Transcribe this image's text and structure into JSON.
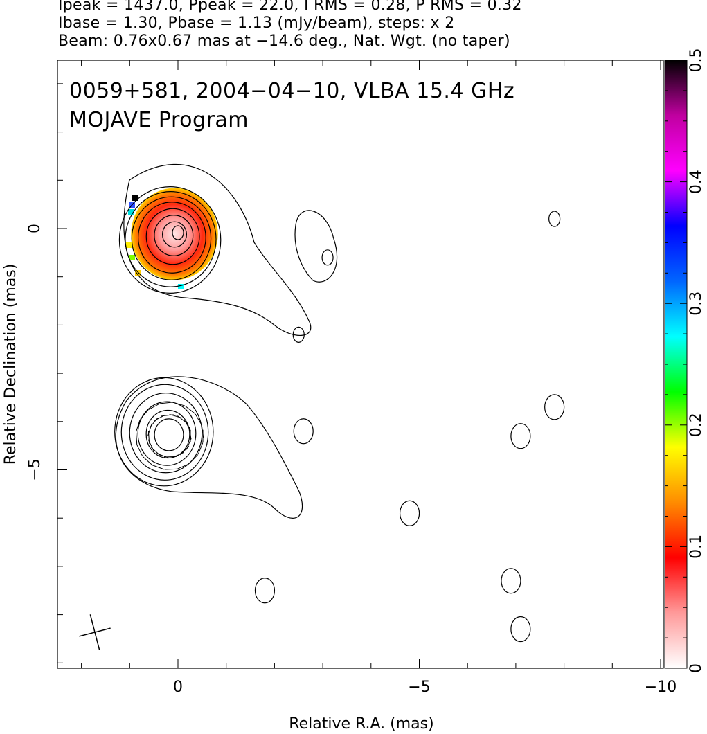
{
  "header": {
    "line1": "Ipeak = 1437.0, Ppeak = 22.0, I RMS = 0.28, P RMS = 0.32",
    "line2": "Ibase = 1.30, Pbase = 1.13 (mJy/beam), steps: x 2",
    "line3": "Beam: 0.76x0.67 mas at −14.6 deg., Nat. Wgt. (no taper)"
  },
  "chart_data": {
    "type": "heatmap",
    "title": "0059+581, 2004−04−10, VLBA 15.4 GHz",
    "subtitle": "MOJAVE Program",
    "xlabel": "Relative R.A. (mas)",
    "ylabel": "Relative Declination (mas)",
    "xlim": [
      2.5,
      -10.2
    ],
    "ylim": [
      -9.0,
      3.5
    ],
    "x_ticks": [
      0,
      -5,
      -10
    ],
    "x_tick_labels": [
      "0",
      "−5",
      "−10"
    ],
    "y_ticks": [
      0,
      -5
    ],
    "y_tick_labels": [
      "0",
      "−5"
    ],
    "colorbar": {
      "range": [
        0,
        0.5
      ],
      "ticks": [
        0,
        0.1,
        0.2,
        0.3,
        0.4,
        0.5
      ],
      "tick_labels": [
        "0",
        "0.1",
        "0.2",
        "0.3",
        "0.4",
        "0.5"
      ],
      "colormap": [
        "#ffffff",
        "#ff9a9a",
        "#ff0000",
        "#ff8c00",
        "#ffff00",
        "#00ff00",
        "#00ffff",
        "#0066ff",
        "#0000ff",
        "#ff00ff",
        "#c000a0",
        "#000000"
      ]
    },
    "upper_panel": {
      "center": [
        0,
        0
      ],
      "contour_radii_mas": [
        0.25,
        0.4,
        0.55,
        0.7,
        0.82,
        0.94,
        1.05
      ],
      "color_fill_radius_mas": 0.9,
      "outer_jet_features": [
        [
          -3.1,
          -0.6
        ],
        [
          -2.5,
          -2.2
        ],
        [
          -7.8,
          0.2
        ]
      ]
    },
    "lower_panel": {
      "center": [
        0,
        -4.3
      ],
      "contour_radii_mas": [
        0.3,
        0.45,
        0.6,
        0.75,
        0.9,
        1.02
      ],
      "outer_features": [
        [
          -2.6,
          -4.2
        ],
        [
          -7.1,
          -4.3
        ],
        [
          -7.8,
          -3.7
        ],
        [
          -4.8,
          -5.9
        ],
        [
          -1.8,
          -7.5
        ],
        [
          -6.9,
          -7.3
        ],
        [
          -7.1,
          -8.3
        ]
      ]
    },
    "beam": {
      "major_mas": 0.76,
      "minor_mas": 0.67,
      "pa_deg": -14.6,
      "position": "bottom-left"
    }
  }
}
